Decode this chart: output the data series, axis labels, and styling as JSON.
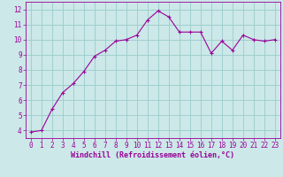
{
  "x": [
    0,
    1,
    2,
    3,
    4,
    5,
    6,
    7,
    8,
    9,
    10,
    11,
    12,
    13,
    14,
    15,
    16,
    17,
    18,
    19,
    20,
    21,
    22,
    23
  ],
  "y": [
    3.9,
    4.0,
    5.4,
    6.5,
    7.1,
    7.9,
    8.9,
    9.3,
    9.9,
    10.0,
    10.3,
    11.3,
    11.9,
    11.5,
    10.5,
    10.5,
    10.5,
    9.1,
    9.9,
    9.3,
    10.3,
    10.0,
    9.9,
    10.0
  ],
  "line_color": "#990099",
  "marker": "+",
  "marker_size": 3,
  "bg_color": "#cce8e8",
  "grid_color": "#99cccc",
  "xlabel": "Windchill (Refroidissement éolien,°C)",
  "xlabel_color": "#990099",
  "tick_color": "#990099",
  "label_fontsize": 5.5,
  "xlabel_fontsize": 6,
  "ylim": [
    3.5,
    12.5
  ],
  "xlim": [
    -0.5,
    23.5
  ],
  "yticks": [
    4,
    5,
    6,
    7,
    8,
    9,
    10,
    11,
    12
  ],
  "xticks": [
    0,
    1,
    2,
    3,
    4,
    5,
    6,
    7,
    8,
    9,
    10,
    11,
    12,
    13,
    14,
    15,
    16,
    17,
    18,
    19,
    20,
    21,
    22,
    23
  ]
}
